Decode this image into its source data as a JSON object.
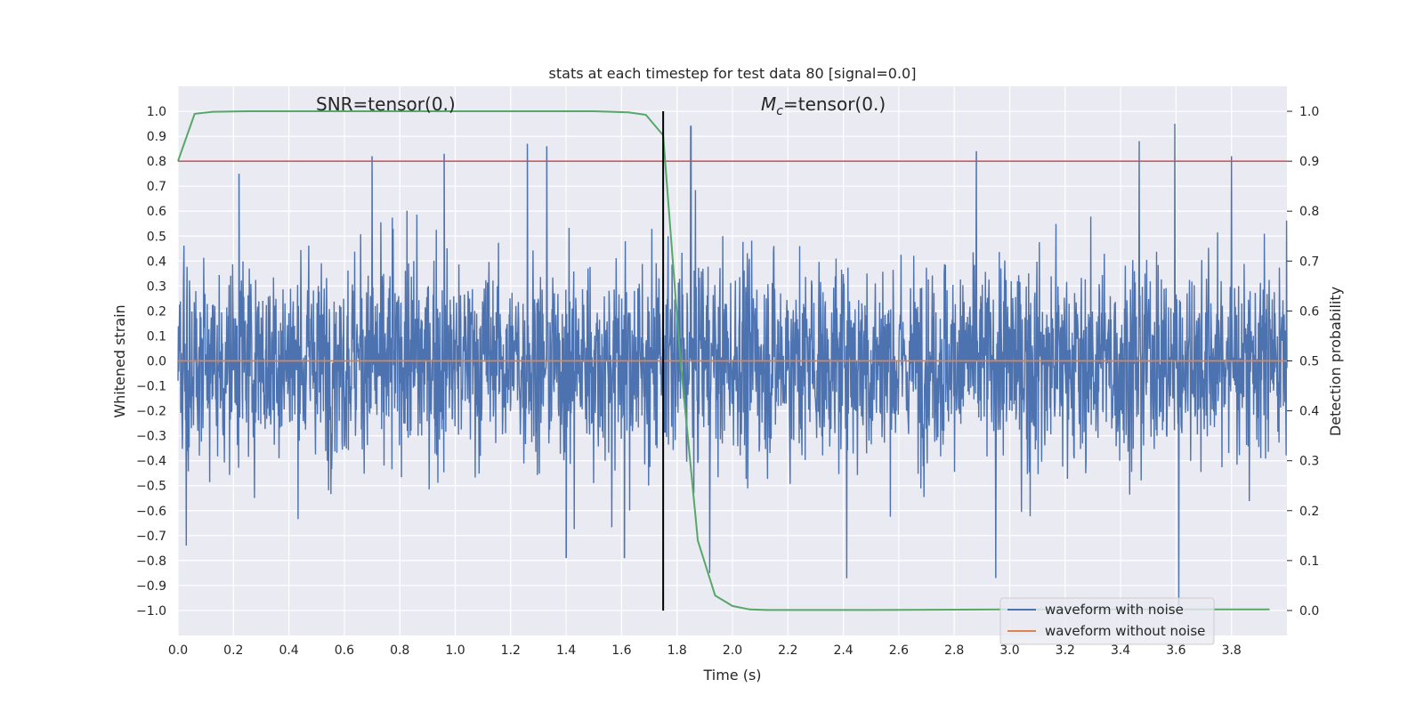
{
  "chart_data": {
    "type": "line",
    "title": "stats at each timestep for test data 80 [signal=0.0]",
    "xlabel": "Time (s)",
    "ylabel": "Whitened strain",
    "y2label": "Detection probability",
    "xlim": [
      0.0,
      4.0
    ],
    "ylim": [
      -1.1,
      1.1
    ],
    "y2lim": [
      -0.05,
      1.05
    ],
    "x_ticks": [
      "0.0",
      "0.2",
      "0.4",
      "0.6",
      "0.8",
      "1.0",
      "1.2",
      "1.4",
      "1.6",
      "1.8",
      "2.0",
      "2.2",
      "2.4",
      "2.6",
      "2.8",
      "3.0",
      "3.2",
      "3.4",
      "3.6",
      "3.8"
    ],
    "y_ticks": [
      "1.0",
      "0.9",
      "0.8",
      "0.7",
      "0.6",
      "0.5",
      "0.4",
      "0.3",
      "0.2",
      "0.1",
      "0.0",
      "−0.1",
      "−0.2",
      "−0.3",
      "−0.4",
      "−0.5",
      "−0.6",
      "−0.7",
      "−0.8",
      "−0.9",
      "−1.0"
    ],
    "y2_ticks": [
      "1.0",
      "0.9",
      "0.8",
      "0.7",
      "0.6",
      "0.5",
      "0.4",
      "0.3",
      "0.2",
      "0.1",
      "0.0"
    ],
    "annotations": {
      "snr": "SNR=tensor(0.)",
      "mc_symbol": "M",
      "mc_subscript": "c",
      "mc_value": "=tensor(0.)"
    },
    "series": [
      {
        "name": "waveform with noise",
        "axis": "left",
        "color": "#4c72b0",
        "style": "dense noise",
        "amplitude_range": [
          -0.95,
          0.95
        ],
        "notable_peaks": [
          [
            0.03,
            -0.74
          ],
          [
            0.22,
            0.75
          ],
          [
            0.7,
            0.82
          ],
          [
            0.96,
            0.83
          ],
          [
            1.26,
            0.87
          ],
          [
            1.33,
            0.86
          ],
          [
            1.4,
            -0.79
          ],
          [
            1.61,
            -0.79
          ],
          [
            1.85,
            0.94
          ],
          [
            2.88,
            0.84
          ],
          [
            2.95,
            -0.87
          ],
          [
            3.61,
            -0.98
          ],
          [
            3.8,
            0.82
          ]
        ]
      },
      {
        "name": "waveform without noise",
        "axis": "left",
        "color": "#dd8452",
        "x": [
          0.0,
          4.0
        ],
        "y": [
          0.0,
          0.0
        ]
      },
      {
        "axis": "right",
        "color": "#55a868",
        "x": [
          0.0,
          0.06,
          0.125,
          0.25,
          0.5,
          0.75,
          1.0,
          1.25,
          1.5,
          1.625,
          1.6875,
          1.75,
          1.8125,
          1.875,
          1.9375,
          2.0,
          2.0625,
          2.125,
          2.5,
          3.0,
          3.5,
          3.9375
        ],
        "y": [
          0.9,
          0.995,
          0.999,
          1.0,
          1.0,
          1.0,
          1.0,
          1.0,
          1.0,
          0.998,
          0.993,
          0.952,
          0.5,
          0.14,
          0.03,
          0.009,
          0.002,
          0.001,
          0.001,
          0.002,
          0.002,
          0.002
        ]
      },
      {
        "axis": "right",
        "color": "#c44e52",
        "x": [
          0.0,
          4.0
        ],
        "y": [
          0.9,
          0.9
        ]
      },
      {
        "axis": "right",
        "color": "#000000",
        "style": "vertical",
        "x": [
          1.75,
          1.75
        ],
        "y": [
          0.0,
          1.0
        ]
      }
    ],
    "legend": {
      "placement": "lower-right",
      "entries": [
        {
          "label": "waveform with noise",
          "color": "#4c72b0"
        },
        {
          "label": "waveform without noise",
          "color": "#dd8452"
        }
      ]
    },
    "grid": true,
    "colors": {
      "axes_bg": "#eaeaf2",
      "grid": "#ffffff"
    }
  }
}
